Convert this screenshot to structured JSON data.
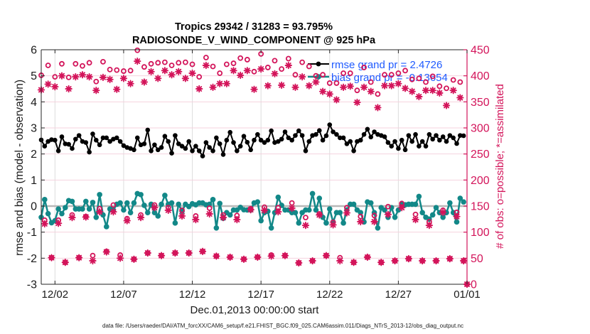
{
  "title": {
    "line1": "Tropics 29342 / 31283 = 93.795%",
    "line2": "RADIOSONDE_V_WIND_COMPONENT @ 925 hPa"
  },
  "footer": {
    "xlabel": "Dec.01,2013 00:00:00 start",
    "data_file": "data file: /Users/raeder/DAI/ATM_forcXX/CAM6_setup/f.e21.FHIST_BGC.f09_025.CAM6assim.011/Diags_NTrS_2013-12/obs_diag_output.nc"
  },
  "legend": {
    "rmse": "rmse grand pr = 2.4726",
    "bias": "bias grand pr = -0.13654"
  },
  "colors": {
    "rmse": "#000000",
    "bias": "#128888",
    "obs": "#d3145a",
    "legend_text": "#1f5bff",
    "zero_line": "#b8b8b8"
  },
  "chart_data": {
    "type": "line",
    "title": "Tropics 29342 / 31283 = 93.795% / RADIOSONDE_V_WIND_COMPONENT @ 925 hPa",
    "xlabel": "Dec.01,2013 00:00:00 start",
    "ylabel": "rmse and bias (model - observation)",
    "ylabel_right": "# of obs: o=possible; *=assimilated",
    "x_units": "days since 2013-12-01 00:00",
    "xlim": [
      0,
      31
    ],
    "ylim": [
      -3,
      6
    ],
    "ylim_right": [
      0,
      450
    ],
    "grid": true,
    "legend_placement": "top-right",
    "reference_line_y": 0,
    "x_ticks": [
      1,
      6,
      11,
      16,
      21,
      26,
      31
    ],
    "x_tick_labels": [
      "12/02",
      "12/07",
      "12/12",
      "12/17",
      "12/22",
      "12/27",
      "01/01"
    ],
    "y_ticks": [
      -3,
      -2,
      -1,
      0,
      1,
      2,
      3,
      4,
      5,
      6
    ],
    "y_ticks_right": [
      0,
      50,
      100,
      150,
      200,
      250,
      300,
      350,
      400,
      450
    ],
    "x": [
      0,
      0.25,
      0.5,
      0.75,
      1,
      1.25,
      1.5,
      1.75,
      2,
      2.25,
      2.5,
      2.75,
      3,
      3.25,
      3.5,
      3.75,
      4,
      4.25,
      4.5,
      4.75,
      5,
      5.25,
      5.5,
      5.75,
      6,
      6.25,
      6.5,
      6.75,
      7,
      7.25,
      7.5,
      7.75,
      8,
      8.25,
      8.5,
      8.75,
      9,
      9.25,
      9.5,
      9.75,
      10,
      10.25,
      10.5,
      10.75,
      11,
      11.25,
      11.5,
      11.75,
      12,
      12.25,
      12.5,
      12.75,
      13,
      13.25,
      13.5,
      13.75,
      14,
      14.25,
      14.5,
      14.75,
      15,
      15.25,
      15.5,
      15.75,
      16,
      16.25,
      16.5,
      16.75,
      17,
      17.25,
      17.5,
      17.75,
      18,
      18.25,
      18.5,
      18.75,
      19,
      19.25,
      19.5,
      19.75,
      20,
      20.25,
      20.5,
      20.75,
      21,
      21.25,
      21.5,
      21.75,
      22,
      22.25,
      22.5,
      22.75,
      23,
      23.25,
      23.5,
      23.75,
      24,
      24.25,
      24.5,
      24.75,
      25,
      25.25,
      25.5,
      25.75,
      26,
      26.25,
      26.5,
      26.75,
      27,
      27.25,
      27.5,
      27.75,
      28,
      28.25,
      28.5,
      28.75,
      29,
      29.25,
      29.5,
      29.75,
      30,
      30.25,
      30.5,
      30.75,
      31
    ],
    "series": [
      {
        "name": "rmse",
        "legend": "rmse grand pr = 2.4726",
        "axis": "left",
        "marker": "filled-circle",
        "values": [
          2.54,
          2.3,
          2.48,
          2.55,
          2.53,
          2.12,
          2.66,
          2.39,
          2.37,
          2.21,
          2.57,
          2.71,
          2.48,
          2.44,
          2.07,
          2.77,
          2.53,
          2.35,
          2.62,
          2.62,
          2.48,
          2.57,
          2.62,
          2.48,
          2.32,
          2.25,
          2.21,
          2.16,
          2.62,
          2.35,
          2.39,
          2.92,
          2.12,
          2.35,
          2.16,
          2.25,
          2.68,
          2.48,
          2.03,
          2.71,
          2.39,
          2.3,
          2.21,
          2.48,
          2.12,
          2.3,
          2.12,
          1.92,
          2.44,
          2.25,
          2.12,
          2.62,
          2.39,
          1.98,
          2.53,
          2.83,
          2.44,
          2.12,
          2.3,
          2.68,
          2.45,
          2.16,
          2.53,
          2.75,
          2.53,
          2.44,
          2.53,
          2.89,
          2.44,
          2.48,
          2.57,
          2.85,
          2.62,
          2.53,
          2.71,
          2.89,
          2.71,
          2.12,
          2.48,
          2.71,
          2.75,
          2.9,
          2.53,
          2.7,
          3.12,
          2.85,
          2.75,
          2.62,
          2.62,
          2.39,
          2.48,
          2.12,
          2.48,
          2.53,
          2.75,
          2.95,
          2.65,
          2.85,
          2.75,
          2.71,
          2.66,
          2.44,
          2.3,
          2.48,
          2.21,
          2.53,
          2.16,
          2.71,
          2.48,
          2.75,
          2.3,
          2.48,
          2.3,
          2.75,
          2.57,
          2.71,
          2.53,
          2.66,
          2.48,
          2.71,
          2.62,
          2.4,
          2.71,
          2.7,
          null
        ]
      },
      {
        "name": "bias",
        "legend": "bias grand pr = -0.13654",
        "axis": "left",
        "marker": "filled-circle",
        "values": [
          -0.43,
          0.25,
          -0.29,
          -0.64,
          -0.56,
          -0.11,
          -0.29,
          -0.06,
          0.21,
          0.18,
          -0.11,
          -0.11,
          -0.11,
          0.18,
          -0.11,
          0.14,
          -0.43,
          0.44,
          -0.34,
          -0.79,
          -0.11,
          -0.15,
          0.07,
          0.12,
          -0.15,
          0.12,
          -0.25,
          0.12,
          0.48,
          0.44,
          0.03,
          -0.25,
          0.07,
          -0.25,
          -0.38,
          0.07,
          0.41,
          0.07,
          0.12,
          -0.65,
          0.07,
          -0.2,
          0.07,
          -0.02,
          0.09,
          0.05,
          0.12,
          0.12,
          0.05,
          0.07,
          0.25,
          -0.84,
          0.1,
          -0.47,
          -0.25,
          -0.34,
          -0.15,
          -0.15,
          -0.05,
          -0.14,
          -0.15,
          -0.15,
          0.12,
          0.16,
          -0.56,
          -0.25,
          -0.2,
          -0.84,
          -0.25,
          0.34,
          0.03,
          -0.15,
          -0.15,
          -0.25,
          -0.25,
          -0.65,
          -0.25,
          -0.15,
          -0.15,
          0.48,
          -0.15,
          0.3,
          -0.43,
          -0.65,
          -0.11,
          -0.61,
          -0.25,
          -0.25,
          -0.65,
          -0.15,
          0.07,
          0.07,
          -0.15,
          -0.25,
          -0.61,
          0.16,
          0.12,
          -0.25,
          -0.84,
          -0.06,
          -0.15,
          -0.43,
          -0.06,
          -0.43,
          -0.15,
          0.07,
          0.05,
          0.07,
          0.07,
          0.07,
          0.37,
          -0.25,
          -0.43,
          -0.5,
          -0.34,
          -0.06,
          -0.25,
          -0.43,
          -0.25,
          0.12,
          -0.25,
          -0.61,
          0.3,
          0.16,
          null
        ]
      },
      {
        "name": "obs possible",
        "axis": "right",
        "marker": "o",
        "values": [
          401,
          123,
          420,
          51,
          398,
          123,
          423,
          42,
          397,
          133,
          423,
          51,
          419,
          130,
          425,
          55,
          389,
          145,
          427,
          63,
          412,
          152,
          411,
          56,
          409,
          126,
          410,
          48,
          449,
          133,
          417,
          60,
          423,
          152,
          425,
          55,
          426,
          147,
          420,
          60,
          425,
          142,
          426,
          60,
          422,
          131,
          398,
          63,
          435,
          146,
          418,
          54,
          405,
          133,
          422,
          52,
          424,
          132,
          434,
          48,
          431,
          145,
          408,
          52,
          442,
          148,
          416,
          56,
          429,
          147,
          413,
          55,
          433,
          156,
          402,
          41,
          426,
          128,
          418,
          45,
          400,
          135,
          402,
          55,
          386,
          119,
          386,
          51,
          405,
          147,
          405,
          42,
          372,
          130,
          416,
          52,
          388,
          132,
          365,
          42,
          402,
          149,
          402,
          45,
          405,
          155,
          410,
          49,
          393,
          134,
          395,
          45,
          388,
          120,
          399,
          45,
          380,
          142,
          376,
          49,
          392,
          138,
          388,
          45,
          0
        ]
      },
      {
        "name": "obs assimilated",
        "axis": "right",
        "marker": "*",
        "values": [
          373,
          116,
          384,
          51,
          379,
          117,
          400,
          42,
          375,
          128,
          398,
          51,
          402,
          129,
          398,
          45,
          372,
          139,
          397,
          62,
          393,
          139,
          374,
          50,
          395,
          122,
          385,
          48,
          428,
          128,
          388,
          60,
          408,
          147,
          395,
          55,
          410,
          142,
          402,
          60,
          408,
          131,
          395,
          60,
          405,
          124,
          375,
          63,
          420,
          135,
          378,
          54,
          385,
          128,
          385,
          52,
          410,
          124,
          401,
          48,
          410,
          143,
          374,
          52,
          413,
          142,
          381,
          54,
          404,
          139,
          382,
          55,
          420,
          146,
          378,
          41,
          398,
          113,
          381,
          45,
          388,
          133,
          370,
          55,
          365,
          114,
          354,
          45,
          378,
          137,
          380,
          42,
          349,
          120,
          378,
          52,
          370,
          120,
          339,
          42,
          381,
          134,
          381,
          45,
          385,
          147,
          376,
          49,
          370,
          124,
          360,
          45,
          372,
          113,
          372,
          45,
          367,
          138,
          343,
          49,
          372,
          130,
          358,
          45,
          0
        ]
      }
    ]
  }
}
